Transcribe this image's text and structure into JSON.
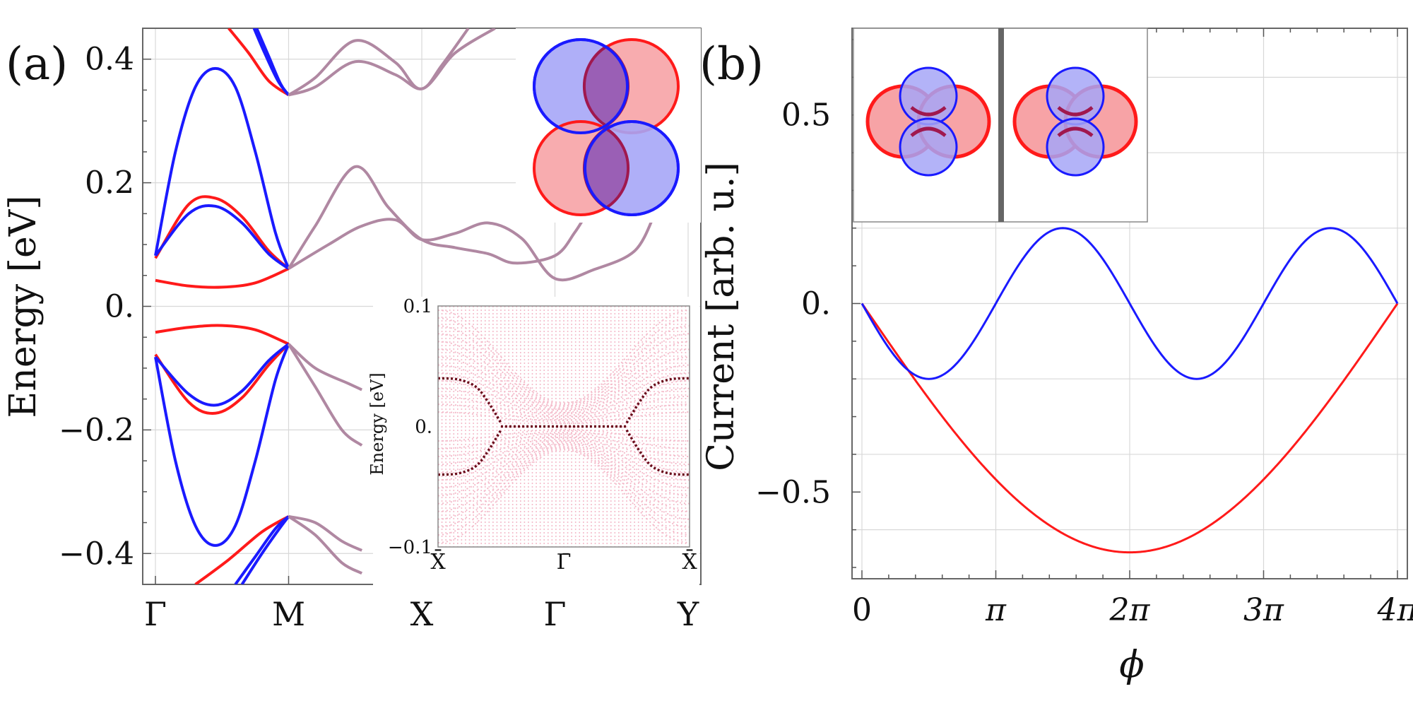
{
  "panel_labels": {
    "a": "(a)",
    "b": "(b)"
  },
  "colors": {
    "red": "#ff1a1a",
    "blue": "#1a1aff",
    "purple": "#b088a2",
    "pink_dots": "#f4bccb",
    "dark_dots": "#6a0a1a",
    "lobe_red_fill": "#f7a3a6",
    "lobe_blue_fill": "#a6a6f7",
    "overlap_fill": "#9a5fb5",
    "overlap_stroke": "#a0184e",
    "grid": "#d8d8d8"
  },
  "icons": {
    "panel_a_orbital": "dxy-orbital-icon",
    "panel_b_left_orbital": "orbital-phase-left-icon",
    "panel_b_right_orbital": "orbital-phase-right-icon"
  },
  "chart_data": [
    {
      "id": "band_structure",
      "type": "line",
      "title": "",
      "xlabel": "",
      "ylabel": "Energy [eV]",
      "ylim": [
        -0.45,
        0.45
      ],
      "xticks": [
        {
          "label": "Γ",
          "x": 0
        },
        {
          "label": "M",
          "x": 1
        },
        {
          "label": "X",
          "x": 2
        },
        {
          "label": "Γ",
          "x": 3
        },
        {
          "label": "Y",
          "x": 4
        }
      ],
      "yticks": [
        {
          "label": "0.4",
          "y": 0.4
        },
        {
          "label": "0.2",
          "y": 0.2
        },
        {
          "label": "0.",
          "y": 0.0
        },
        {
          "label": "−0.2",
          "y": -0.2
        },
        {
          "label": "−0.4",
          "y": -0.4
        }
      ],
      "grid": true,
      "series": [
        {
          "name": "red-upper-low",
          "color": "red",
          "points": [
            [
              0,
              0.042
            ],
            [
              0.25,
              0.033
            ],
            [
              0.5,
              0.031
            ],
            [
              0.75,
              0.038
            ],
            [
              1,
              0.061
            ]
          ]
        },
        {
          "name": "red-upper-hump",
          "color": "red",
          "points": [
            [
              0,
              0.078
            ],
            [
              0.25,
              0.165
            ],
            [
              0.45,
              0.175
            ],
            [
              0.65,
              0.145
            ],
            [
              0.85,
              0.09
            ],
            [
              1,
              0.061
            ]
          ]
        },
        {
          "name": "blue-upper-hump",
          "color": "blue",
          "points": [
            [
              0,
              0.082
            ],
            [
              0.25,
              0.15
            ],
            [
              0.45,
              0.162
            ],
            [
              0.65,
              0.135
            ],
            [
              0.85,
              0.085
            ],
            [
              1,
              0.061
            ]
          ]
        },
        {
          "name": "blue-upper-big",
          "color": "blue",
          "points": [
            [
              0,
              0.082
            ],
            [
              0.15,
              0.25
            ],
            [
              0.3,
              0.355
            ],
            [
              0.45,
              0.385
            ],
            [
              0.6,
              0.355
            ],
            [
              0.75,
              0.25
            ],
            [
              0.9,
              0.12
            ],
            [
              1,
              0.061
            ]
          ]
        },
        {
          "name": "red-top-left",
          "color": "red",
          "points": [
            [
              0.55,
              0.45
            ],
            [
              0.7,
              0.41
            ],
            [
              0.85,
              0.365
            ],
            [
              1,
              0.342
            ]
          ]
        },
        {
          "name": "blue-top-left-1",
          "color": "blue",
          "points": [
            [
              0.74,
              0.45
            ],
            [
              0.82,
              0.41
            ],
            [
              0.92,
              0.365
            ],
            [
              1,
              0.342
            ]
          ]
        },
        {
          "name": "blue-top-left-2",
          "color": "blue",
          "points": [
            [
              0.76,
              0.45
            ],
            [
              0.85,
              0.405
            ],
            [
              0.94,
              0.36
            ],
            [
              1,
              0.342
            ]
          ]
        },
        {
          "name": "purple-top-1",
          "color": "purple",
          "points": [
            [
              1,
              0.342
            ],
            [
              1.2,
              0.37
            ],
            [
              1.5,
              0.43
            ],
            [
              1.8,
              0.395
            ],
            [
              2,
              0.352
            ],
            [
              2.25,
              0.41
            ],
            [
              2.55,
              0.45
            ]
          ]
        },
        {
          "name": "purple-top-2",
          "color": "purple",
          "points": [
            [
              1,
              0.342
            ],
            [
              1.2,
              0.355
            ],
            [
              1.5,
              0.396
            ],
            [
              1.8,
              0.375
            ],
            [
              2,
              0.352
            ],
            [
              2.15,
              0.39
            ],
            [
              2.35,
              0.45
            ]
          ]
        },
        {
          "name": "purple-mid-1",
          "color": "purple",
          "points": [
            [
              1,
              0.061
            ],
            [
              1.2,
              0.13
            ],
            [
              1.5,
              0.226
            ],
            [
              1.75,
              0.16
            ],
            [
              2,
              0.108
            ],
            [
              2.25,
              0.095
            ],
            [
              2.5,
              0.085
            ],
            [
              2.7,
              0.07
            ],
            [
              3,
              0.082
            ],
            [
              3.15,
              0.12
            ],
            [
              3.25,
              0.155
            ]
          ]
        },
        {
          "name": "purple-mid-2",
          "color": "purple",
          "points": [
            [
              1,
              0.061
            ],
            [
              1.3,
              0.1
            ],
            [
              1.55,
              0.13
            ],
            [
              1.8,
              0.14
            ],
            [
              2,
              0.108
            ],
            [
              2.25,
              0.118
            ],
            [
              2.5,
              0.135
            ],
            [
              2.75,
              0.11
            ],
            [
              3,
              0.045
            ],
            [
              3.3,
              0.06
            ],
            [
              3.6,
              0.09
            ],
            [
              3.75,
              0.15
            ]
          ]
        },
        {
          "name": "red-lower-top",
          "color": "red",
          "points": [
            [
              0,
              -0.042
            ],
            [
              0.25,
              -0.034
            ],
            [
              0.5,
              -0.031
            ],
            [
              0.75,
              -0.038
            ],
            [
              1,
              -0.061
            ]
          ]
        },
        {
          "name": "red-lower-hump",
          "color": "red",
          "points": [
            [
              0,
              -0.078
            ],
            [
              0.25,
              -0.155
            ],
            [
              0.45,
              -0.173
            ],
            [
              0.65,
              -0.148
            ],
            [
              0.85,
              -0.095
            ],
            [
              1,
              -0.061
            ]
          ]
        },
        {
          "name": "blue-lower-hump",
          "color": "blue",
          "points": [
            [
              0,
              -0.082
            ],
            [
              0.25,
              -0.142
            ],
            [
              0.45,
              -0.16
            ],
            [
              0.65,
              -0.137
            ],
            [
              0.85,
              -0.088
            ],
            [
              1,
              -0.061
            ]
          ]
        },
        {
          "name": "blue-lower-big",
          "color": "blue",
          "points": [
            [
              0,
              -0.082
            ],
            [
              0.15,
              -0.25
            ],
            [
              0.3,
              -0.355
            ],
            [
              0.45,
              -0.387
            ],
            [
              0.6,
              -0.355
            ],
            [
              0.75,
              -0.25
            ],
            [
              0.9,
              -0.12
            ],
            [
              1,
              -0.061
            ]
          ]
        },
        {
          "name": "red-bottom-left",
          "color": "red",
          "points": [
            [
              0.3,
              -0.45
            ],
            [
              0.55,
              -0.41
            ],
            [
              0.8,
              -0.365
            ],
            [
              1,
              -0.34
            ]
          ]
        },
        {
          "name": "blue-bottom-left-1",
          "color": "blue",
          "points": [
            [
              0.6,
              -0.45
            ],
            [
              0.75,
              -0.405
            ],
            [
              0.9,
              -0.36
            ],
            [
              1,
              -0.34
            ]
          ]
        },
        {
          "name": "blue-bottom-left-2",
          "color": "blue",
          "points": [
            [
              0.65,
              -0.45
            ],
            [
              0.8,
              -0.4
            ],
            [
              0.93,
              -0.36
            ],
            [
              1,
              -0.34
            ]
          ]
        },
        {
          "name": "purple-lower-1",
          "color": "purple",
          "points": [
            [
              1,
              -0.061
            ],
            [
              1.2,
              -0.1
            ],
            [
              1.45,
              -0.125
            ],
            [
              1.55,
              -0.135
            ]
          ]
        },
        {
          "name": "purple-lower-2",
          "color": "purple",
          "points": [
            [
              1,
              -0.061
            ],
            [
              1.2,
              -0.13
            ],
            [
              1.4,
              -0.2
            ],
            [
              1.55,
              -0.225
            ]
          ]
        },
        {
          "name": "purple-bottom-1",
          "color": "purple",
          "points": [
            [
              1,
              -0.34
            ],
            [
              1.2,
              -0.35
            ],
            [
              1.4,
              -0.38
            ],
            [
              1.55,
              -0.395
            ]
          ]
        },
        {
          "name": "purple-bottom-2",
          "color": "purple",
          "points": [
            [
              1,
              -0.34
            ],
            [
              1.2,
              -0.37
            ],
            [
              1.4,
              -0.415
            ],
            [
              1.55,
              -0.432
            ]
          ]
        }
      ]
    },
    {
      "id": "edge_spectrum_inset",
      "type": "scatter",
      "ylabel": "Energy [eV]",
      "ylim": [
        -0.1,
        0.1
      ],
      "xlim": [
        0,
        1
      ],
      "xticks": [
        {
          "label": "X̄",
          "x": 0
        },
        {
          "label": "Γ̄",
          "x": 0.5
        },
        {
          "label": "X̄",
          "x": 1
        }
      ],
      "yticks": [
        {
          "label": "0.1",
          "y": 0.1
        },
        {
          "label": "0.",
          "y": 0.0
        },
        {
          "label": "−0.1",
          "y": -0.1
        }
      ],
      "bulk_bands": "dense pink point cloud",
      "edge_states": [
        {
          "name": "zero-energy-flat",
          "points": [
            [
              0.25,
              0.0
            ],
            [
              0.4,
              0.0
            ],
            [
              0.5,
              0.0
            ],
            [
              0.6,
              0.0
            ],
            [
              0.75,
              0.0
            ]
          ]
        },
        {
          "name": "upper-left",
          "points": [
            [
              0,
              0.04
            ],
            [
              0.08,
              0.039
            ],
            [
              0.15,
              0.033
            ],
            [
              0.2,
              0.02
            ],
            [
              0.25,
              0.003
            ]
          ]
        },
        {
          "name": "upper-right",
          "points": [
            [
              0.75,
              0.003
            ],
            [
              0.8,
              0.02
            ],
            [
              0.85,
              0.033
            ],
            [
              0.92,
              0.039
            ],
            [
              1,
              0.04
            ]
          ]
        },
        {
          "name": "lower-left",
          "points": [
            [
              0,
              -0.04
            ],
            [
              0.08,
              -0.039
            ],
            [
              0.15,
              -0.033
            ],
            [
              0.2,
              -0.02
            ],
            [
              0.25,
              -0.003
            ]
          ]
        },
        {
          "name": "lower-right",
          "points": [
            [
              0.75,
              -0.003
            ],
            [
              0.8,
              -0.02
            ],
            [
              0.85,
              -0.033
            ],
            [
              0.92,
              -0.039
            ],
            [
              1,
              -0.04
            ]
          ]
        }
      ]
    },
    {
      "id": "current_phase",
      "type": "line",
      "title": "",
      "xlabel": "ϕ",
      "ylabel": "Current [arb. u.]",
      "xlim": [
        0,
        4
      ],
      "x_units": "π",
      "ylim": [
        -0.73,
        0.73
      ],
      "xticks": [
        {
          "label": "0",
          "x": 0
        },
        {
          "label": "π",
          "x": 1
        },
        {
          "label": "2π",
          "x": 2
        },
        {
          "label": "3π",
          "x": 3
        },
        {
          "label": "4π",
          "x": 4
        }
      ],
      "yticks": [
        {
          "label": "0.5",
          "y": 0.5
        },
        {
          "label": "0.",
          "y": 0.0
        },
        {
          "label": "−0.5",
          "y": -0.5
        }
      ],
      "grid": true,
      "series": [
        {
          "name": "red-curve",
          "color": "red",
          "formula": "-0.66*sin(pi*x/4)",
          "amplitude": 0.66
        },
        {
          "name": "blue-curve",
          "color": "blue",
          "formula": "-0.20*sin(pi*x)",
          "amplitude": 0.2
        }
      ]
    }
  ]
}
